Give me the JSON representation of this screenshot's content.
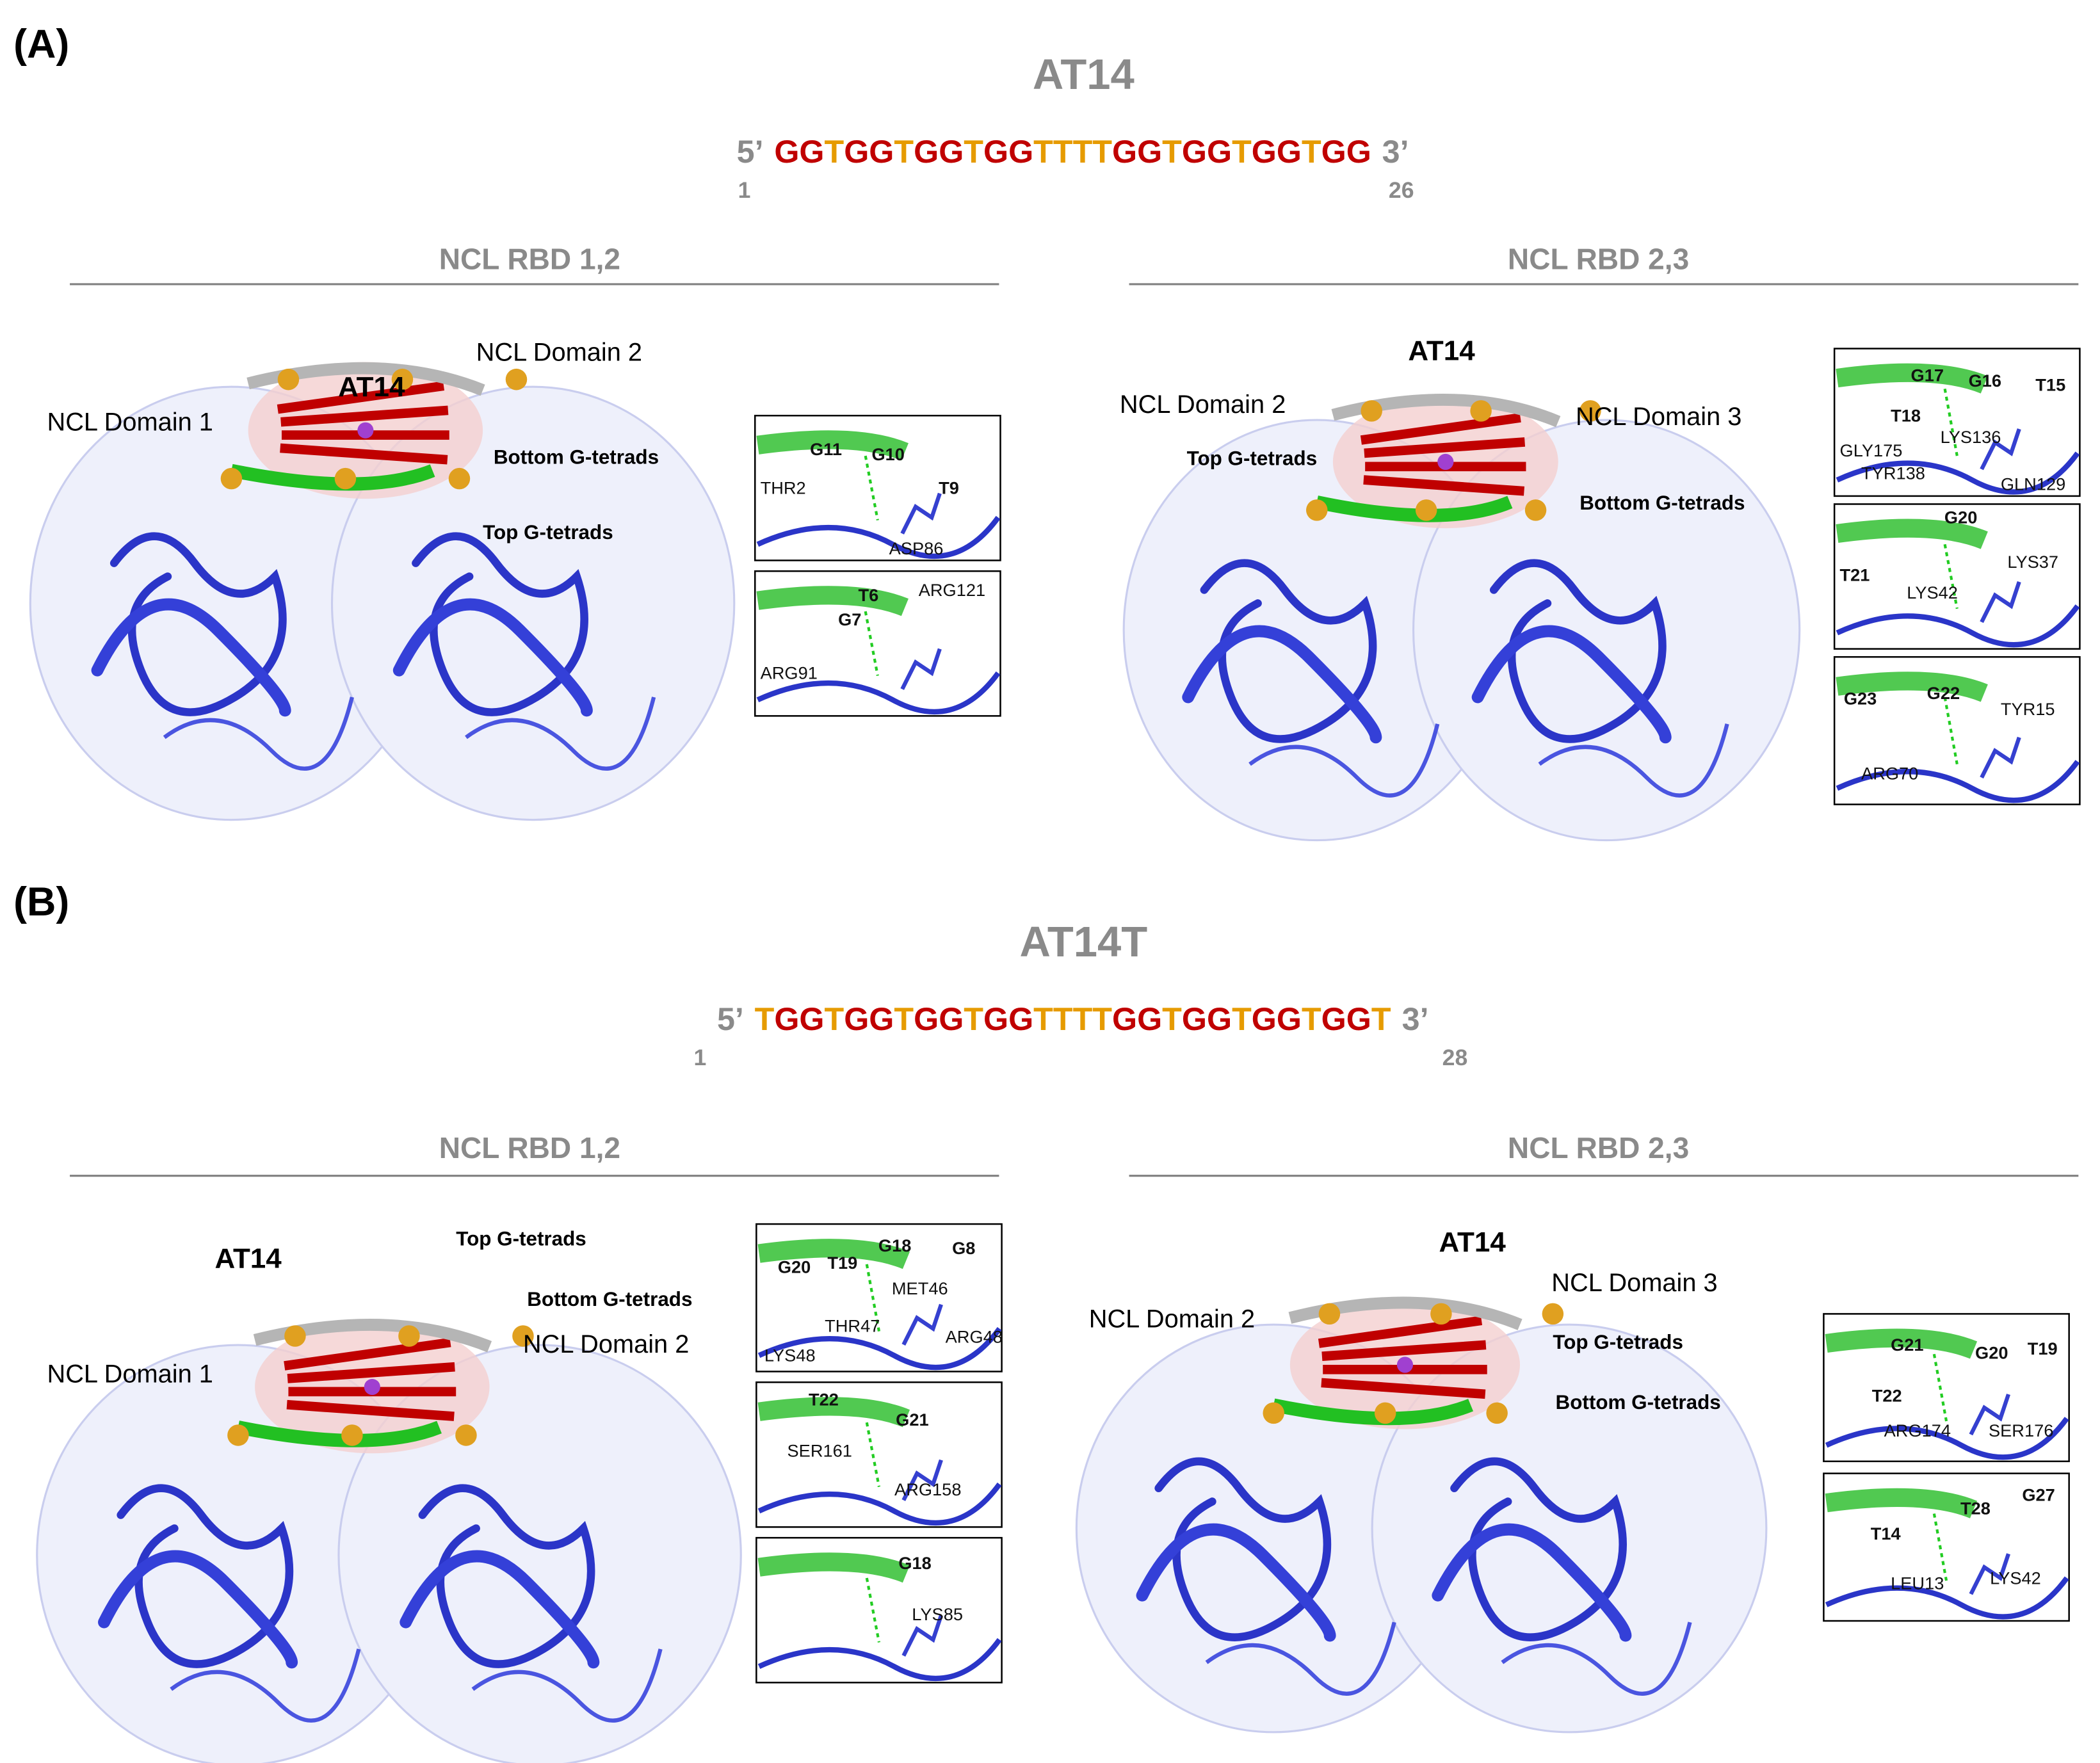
{
  "panels": [
    {
      "label": "(A)",
      "title": "AT14",
      "sequence": {
        "prefix": "5’",
        "seq": "GGTGGTGGTGGTTTTGGTGGTGGTGG",
        "suffix": "3’",
        "start": "1",
        "end": "26"
      },
      "complexes": [
        {
          "title": "NCL RBD 1,2",
          "labels": [
            "NCL Domain 1",
            "AT14",
            "NCL Domain 2",
            "Bottom G-tetrads",
            "Top G-tetrads"
          ],
          "insets": [
            [
              "G11",
              "G10",
              "THR2",
              "T9",
              "ASP86"
            ],
            [
              "T6",
              "ARG121",
              "G7",
              "ARG91"
            ]
          ]
        },
        {
          "title": "NCL RBD 2,3",
          "labels": [
            "NCL Domain 2",
            "AT14",
            "NCL Domain 3",
            "Top G-tetrads",
            "Bottom G-tetrads"
          ],
          "insets": [
            [
              "G17",
              "G16",
              "T15",
              "T18",
              "LYS136",
              "GLY175",
              "TYR138",
              "GLN129"
            ],
            [
              "G20",
              "T21",
              "LYS37",
              "LYS42"
            ],
            [
              "G23",
              "G22",
              "TYR15",
              "ARG70"
            ]
          ]
        }
      ]
    },
    {
      "label": "(B)",
      "title": "AT14T",
      "sequence": {
        "prefix": "5’",
        "seq": "TGGTGGTGGTGGTTTTGGTGGTGGTGGT",
        "suffix": "3’",
        "start": "1",
        "end": "28"
      },
      "complexes": [
        {
          "title": "NCL RBD 1,2",
          "labels": [
            "AT14",
            "Top G-tetrads",
            "Bottom G-tetrads",
            "NCL Domain 2",
            "NCL Domain 1"
          ],
          "insets": [
            [
              "G20",
              "T19",
              "G18",
              "G8",
              "MET46",
              "THR47",
              "ARG48",
              "LYS48"
            ],
            [
              "T22",
              "G21",
              "SER161",
              "ARG158"
            ],
            [
              "G18",
              "LYS85"
            ]
          ]
        },
        {
          "title": "NCL RBD 2,3",
          "labels": [
            "AT14",
            "NCL Domain 3",
            "NCL Domain 2",
            "Top G-tetrads",
            "Bottom G-tetrads"
          ],
          "insets": [
            [
              "G21",
              "G20",
              "T19",
              "T22",
              "ARG174",
              "SER176"
            ],
            [
              "T28",
              "G27",
              "T14",
              "LEU13",
              "LYS42"
            ]
          ]
        }
      ]
    }
  ]
}
